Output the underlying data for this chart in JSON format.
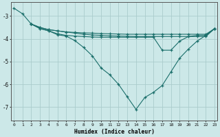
{
  "xlabel": "Humidex (Indice chaleur)",
  "bg_color": "#cce8e8",
  "line_color": "#1a6e6a",
  "grid_color": "#aacccc",
  "xlim": [
    -0.3,
    23.3
  ],
  "ylim": [
    -7.6,
    -2.4
  ],
  "yticks": [
    -7,
    -6,
    -5,
    -4,
    -3
  ],
  "xticks": [
    0,
    1,
    2,
    3,
    4,
    5,
    6,
    7,
    8,
    9,
    10,
    11,
    12,
    13,
    14,
    15,
    16,
    17,
    18,
    19,
    20,
    21,
    22,
    23
  ],
  "series": [
    {
      "x": [
        0,
        1,
        2,
        3,
        4,
        5,
        6,
        7,
        8,
        9,
        10,
        11,
        12,
        13,
        14,
        15,
        16,
        17,
        18,
        19,
        20,
        21,
        22,
        23
      ],
      "y": [
        -2.65,
        -2.9,
        -3.35,
        -3.5,
        -3.6,
        -3.65,
        -3.7,
        -3.72,
        -3.74,
        -3.75,
        -3.77,
        -3.78,
        -3.79,
        -3.8,
        -3.8,
        -3.8,
        -3.8,
        -3.8,
        -3.8,
        -3.8,
        -3.8,
        -3.8,
        -3.8,
        -3.55
      ]
    },
    {
      "x": [
        2,
        3,
        4,
        5,
        6,
        7,
        8,
        9,
        10,
        11,
        12,
        13,
        14,
        15,
        16,
        17,
        18,
        19,
        20,
        21,
        22,
        23
      ],
      "y": [
        -3.35,
        -3.5,
        -3.6,
        -3.65,
        -3.7,
        -3.75,
        -3.8,
        -3.83,
        -3.85,
        -3.87,
        -3.88,
        -3.89,
        -3.9,
        -3.9,
        -3.9,
        -3.9,
        -3.9,
        -3.9,
        -3.9,
        -3.9,
        -3.9,
        -3.55
      ]
    },
    {
      "x": [
        2,
        3,
        4,
        5,
        6,
        7,
        8,
        9,
        10,
        11,
        12,
        13,
        14,
        15,
        16,
        17,
        18,
        19,
        20,
        21,
        22,
        23
      ],
      "y": [
        -3.35,
        -3.55,
        -3.65,
        -3.78,
        -3.85,
        -3.88,
        -3.9,
        -3.92,
        -3.93,
        -3.93,
        -3.93,
        -3.93,
        -3.93,
        -3.93,
        -3.93,
        -4.5,
        -4.5,
        -4.1,
        -3.9,
        -3.85,
        -3.85,
        -3.55
      ]
    },
    {
      "x": [
        2,
        3,
        4,
        5,
        6,
        7,
        8,
        9,
        10,
        11,
        12,
        13,
        14,
        15,
        16,
        17,
        18,
        19,
        20,
        21,
        22,
        23
      ],
      "y": [
        -3.35,
        -3.55,
        -3.65,
        -3.82,
        -3.88,
        -4.08,
        -4.38,
        -4.75,
        -5.28,
        -5.58,
        -6.0,
        -6.55,
        -7.1,
        -6.58,
        -6.35,
        -6.05,
        -5.45,
        -4.85,
        -4.45,
        -4.1,
        -3.85,
        -3.55
      ]
    }
  ]
}
